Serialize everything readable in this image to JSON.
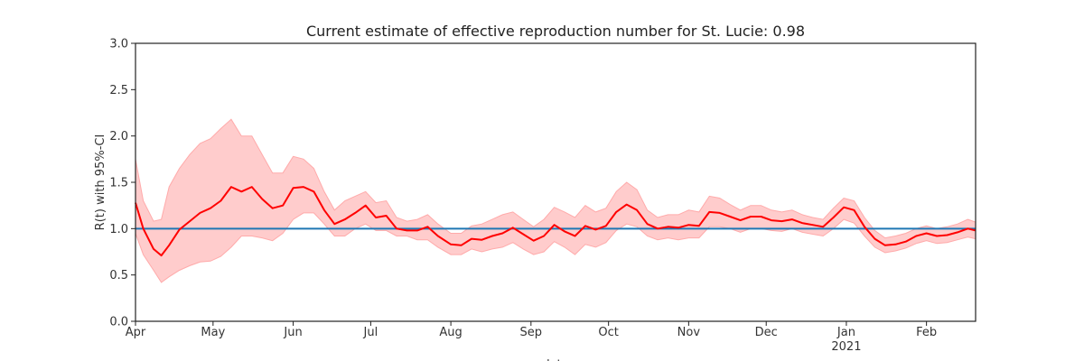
{
  "chart_data": {
    "type": "line",
    "title": "Current estimate of effective reproduction number for St. Lucie: 0.98",
    "ylabel": "R(t) with 95%-CI",
    "xlabel": "date",
    "ylim": [
      0,
      3.0
    ],
    "y_ticks": [
      "0.0",
      "0.5",
      "1.0",
      "1.5",
      "2.0",
      "2.5",
      "3.0"
    ],
    "x_range": [
      "2020-04-01",
      "2021-02-20"
    ],
    "x_ticks": [
      {
        "date": "2020-04-01",
        "label": "Apr"
      },
      {
        "date": "2020-05-01",
        "label": "May"
      },
      {
        "date": "2020-06-01",
        "label": "Jun"
      },
      {
        "date": "2020-07-01",
        "label": "Jul"
      },
      {
        "date": "2020-08-01",
        "label": "Aug"
      },
      {
        "date": "2020-09-01",
        "label": "Sep"
      },
      {
        "date": "2020-10-01",
        "label": "Oct"
      },
      {
        "date": "2020-11-01",
        "label": "Nov"
      },
      {
        "date": "2020-12-01",
        "label": "Dec"
      },
      {
        "date": "2021-01-01",
        "label": "Jan",
        "sublabel": "2021"
      },
      {
        "date": "2021-02-01",
        "label": "Feb"
      }
    ],
    "reference_line": {
      "y": 1.0,
      "color": "#1f77b4"
    },
    "grid": false,
    "colors": {
      "estimate": "#ff0000",
      "ci_fill": "#ffcccc",
      "ci_edge": "#ffaaaa"
    },
    "x": [
      "2020-04-01",
      "2020-04-04",
      "2020-04-08",
      "2020-04-11",
      "2020-04-14",
      "2020-04-18",
      "2020-04-22",
      "2020-04-26",
      "2020-04-30",
      "2020-05-04",
      "2020-05-08",
      "2020-05-12",
      "2020-05-16",
      "2020-05-20",
      "2020-05-24",
      "2020-05-28",
      "2020-06-01",
      "2020-06-05",
      "2020-06-09",
      "2020-06-13",
      "2020-06-17",
      "2020-06-21",
      "2020-06-25",
      "2020-06-29",
      "2020-07-03",
      "2020-07-07",
      "2020-07-11",
      "2020-07-15",
      "2020-07-19",
      "2020-07-23",
      "2020-07-27",
      "2020-08-01",
      "2020-08-05",
      "2020-08-09",
      "2020-08-13",
      "2020-08-17",
      "2020-08-21",
      "2020-08-25",
      "2020-08-29",
      "2020-09-02",
      "2020-09-06",
      "2020-09-10",
      "2020-09-14",
      "2020-09-18",
      "2020-09-22",
      "2020-09-26",
      "2020-09-30",
      "2020-10-04",
      "2020-10-08",
      "2020-10-12",
      "2020-10-16",
      "2020-10-20",
      "2020-10-24",
      "2020-10-28",
      "2020-11-01",
      "2020-11-05",
      "2020-11-09",
      "2020-11-13",
      "2020-11-17",
      "2020-11-21",
      "2020-11-25",
      "2020-11-29",
      "2020-12-03",
      "2020-12-07",
      "2020-12-11",
      "2020-12-15",
      "2020-12-19",
      "2020-12-23",
      "2020-12-27",
      "2020-12-31",
      "2021-01-04",
      "2021-01-08",
      "2021-01-12",
      "2021-01-16",
      "2021-01-20",
      "2021-01-24",
      "2021-01-28",
      "2021-02-01",
      "2021-02-05",
      "2021-02-09",
      "2021-02-13",
      "2021-02-17",
      "2021-02-20"
    ],
    "series": [
      {
        "values": [
          1.28,
          1.0,
          0.78,
          0.71,
          0.82,
          0.99,
          1.08,
          1.17,
          1.22,
          1.3,
          1.45,
          1.4,
          1.45,
          1.32,
          1.22,
          1.25,
          1.44,
          1.45,
          1.4,
          1.2,
          1.05,
          1.1,
          1.17,
          1.25,
          1.12,
          1.14,
          1.0,
          0.98,
          0.98,
          1.02,
          0.92,
          0.83,
          0.82,
          0.89,
          0.88,
          0.92,
          0.95,
          1.01,
          0.94,
          0.87,
          0.92,
          1.04,
          0.97,
          0.92,
          1.03,
          0.99,
          1.03,
          1.18,
          1.26,
          1.2,
          1.05,
          1.0,
          1.02,
          1.01,
          1.04,
          1.03,
          1.18,
          1.17,
          1.13,
          1.09,
          1.13,
          1.13,
          1.09,
          1.08,
          1.1,
          1.06,
          1.04,
          1.02,
          1.12,
          1.23,
          1.2,
          1.02,
          0.89,
          0.82,
          0.83,
          0.86,
          0.92,
          0.95,
          0.92,
          0.93,
          0.96,
          1.0,
          0.98
        ],
        "ci_lower": [
          0.95,
          0.72,
          0.55,
          0.42,
          0.48,
          0.55,
          0.6,
          0.64,
          0.65,
          0.7,
          0.8,
          0.92,
          0.92,
          0.9,
          0.87,
          0.95,
          1.1,
          1.17,
          1.17,
          1.05,
          0.92,
          0.92,
          1.0,
          1.05,
          0.98,
          0.98,
          0.92,
          0.92,
          0.88,
          0.88,
          0.8,
          0.72,
          0.72,
          0.78,
          0.75,
          0.78,
          0.8,
          0.85,
          0.78,
          0.72,
          0.75,
          0.86,
          0.8,
          0.72,
          0.83,
          0.8,
          0.85,
          0.98,
          1.05,
          1.02,
          0.92,
          0.88,
          0.9,
          0.88,
          0.9,
          0.9,
          1.02,
          1.02,
          1.0,
          0.96,
          1.0,
          1.0,
          0.98,
          0.97,
          1.0,
          0.96,
          0.94,
          0.92,
          1.0,
          1.1,
          1.06,
          0.92,
          0.8,
          0.74,
          0.76,
          0.79,
          0.84,
          0.87,
          0.84,
          0.85,
          0.88,
          0.91,
          0.89
        ],
        "ci_upper": [
          1.75,
          1.3,
          1.08,
          1.1,
          1.45,
          1.65,
          1.8,
          1.92,
          1.97,
          2.08,
          2.18,
          2.0,
          2.0,
          1.8,
          1.6,
          1.6,
          1.78,
          1.75,
          1.65,
          1.4,
          1.2,
          1.3,
          1.35,
          1.4,
          1.28,
          1.3,
          1.12,
          1.08,
          1.1,
          1.15,
          1.05,
          0.95,
          0.95,
          1.03,
          1.05,
          1.1,
          1.15,
          1.18,
          1.1,
          1.02,
          1.1,
          1.23,
          1.18,
          1.12,
          1.25,
          1.18,
          1.22,
          1.4,
          1.5,
          1.42,
          1.2,
          1.12,
          1.15,
          1.15,
          1.2,
          1.18,
          1.35,
          1.33,
          1.26,
          1.2,
          1.25,
          1.25,
          1.2,
          1.18,
          1.2,
          1.15,
          1.12,
          1.1,
          1.22,
          1.33,
          1.3,
          1.12,
          0.98,
          0.9,
          0.92,
          0.95,
          1.0,
          1.03,
          1.0,
          1.02,
          1.05,
          1.1,
          1.07
        ]
      }
    ]
  }
}
